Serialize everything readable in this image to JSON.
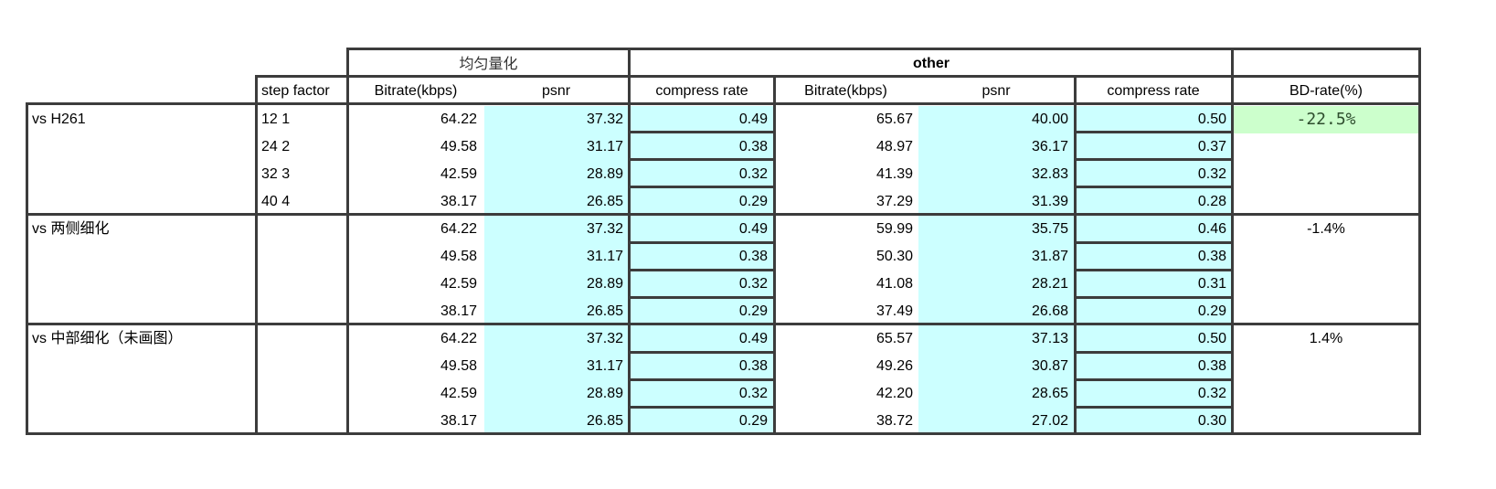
{
  "header": {
    "group_uniform": "均匀量化",
    "group_other": "other",
    "step_factor": "step factor",
    "bitrate1": "Bitrate(kbps)",
    "psnr1": "psnr",
    "compress1": "compress rate",
    "bitrate2": "Bitrate(kbps)",
    "psnr2": "psnr",
    "compress2": "compress rate",
    "bdrate": "BD-rate(%)"
  },
  "groups": [
    {
      "label": "vs H261",
      "bd_rate": "-22.5%",
      "highlight": "#ccffcc",
      "rows": [
        {
          "step": "12 1",
          "br1": "64.22",
          "psnr1": "37.32",
          "cr1": "0.49",
          "br2": "65.67",
          "psnr2": "40.00",
          "cr2": "0.50"
        },
        {
          "step": "24 2",
          "br1": "49.58",
          "psnr1": "31.17",
          "cr1": "0.38",
          "br2": "48.97",
          "psnr2": "36.17",
          "cr2": "0.37"
        },
        {
          "step": "32 3",
          "br1": "42.59",
          "psnr1": "28.89",
          "cr1": "0.32",
          "br2": "41.39",
          "psnr2": "32.83",
          "cr2": "0.32"
        },
        {
          "step": "40 4",
          "br1": "38.17",
          "psnr1": "26.85",
          "cr1": "0.29",
          "br2": "37.29",
          "psnr2": "31.39",
          "cr2": "0.28"
        }
      ]
    },
    {
      "label": "vs 两侧细化",
      "bd_rate": "-1.4%",
      "rows": [
        {
          "step": "",
          "br1": "64.22",
          "psnr1": "37.32",
          "cr1": "0.49",
          "br2": "59.99",
          "psnr2": "35.75",
          "cr2": "0.46"
        },
        {
          "step": "",
          "br1": "49.58",
          "psnr1": "31.17",
          "cr1": "0.38",
          "br2": "50.30",
          "psnr2": "31.87",
          "cr2": "0.38"
        },
        {
          "step": "",
          "br1": "42.59",
          "psnr1": "28.89",
          "cr1": "0.32",
          "br2": "41.08",
          "psnr2": "28.21",
          "cr2": "0.31"
        },
        {
          "step": "",
          "br1": "38.17",
          "psnr1": "26.85",
          "cr1": "0.29",
          "br2": "37.49",
          "psnr2": "26.68",
          "cr2": "0.29"
        }
      ]
    },
    {
      "label": "vs 中部细化（未画图）",
      "bd_rate": "1.4%",
      "rows": [
        {
          "step": "",
          "br1": "64.22",
          "psnr1": "37.32",
          "cr1": "0.49",
          "br2": "65.57",
          "psnr2": "37.13",
          "cr2": "0.50"
        },
        {
          "step": "",
          "br1": "49.58",
          "psnr1": "31.17",
          "cr1": "0.38",
          "br2": "49.26",
          "psnr2": "30.87",
          "cr2": "0.38"
        },
        {
          "step": "",
          "br1": "42.59",
          "psnr1": "28.89",
          "cr1": "0.32",
          "br2": "42.20",
          "psnr2": "28.65",
          "cr2": "0.32"
        },
        {
          "step": "",
          "br1": "38.17",
          "psnr1": "26.85",
          "cr1": "0.29",
          "br2": "38.72",
          "psnr2": "27.02",
          "cr2": "0.30"
        }
      ]
    }
  ],
  "colors": {
    "fill_cyan": "#ccffff",
    "fill_highlight": "#ccffcc",
    "border": "#3c3c3c"
  }
}
